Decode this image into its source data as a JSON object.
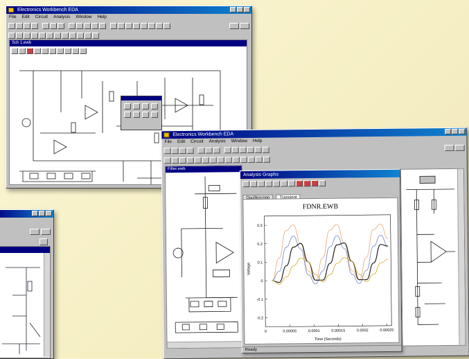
{
  "windows": {
    "top_left": {
      "title": "Electronics Workbench EDA",
      "menu": [
        "File",
        "Edit",
        "Circuit",
        "Analysis",
        "Window",
        "Help"
      ],
      "child_title": "Sch 1.ewb"
    },
    "right": {
      "title": "Electronics Workbench EDA",
      "menu": [
        "File",
        "Edit",
        "Circuit",
        "Analysis",
        "Window",
        "Help"
      ],
      "child_title": "Filter.ewb",
      "grapher": {
        "title": "Analysis Graphs",
        "tabs": [
          "Oscilloscope",
          "Transient"
        ],
        "plot_title": "FDNR.EWB",
        "xlabel": "Time (Seconds)",
        "ylabel": "Voltage",
        "status": "Ready"
      }
    },
    "bottom_left": {
      "title": ""
    }
  },
  "chart_data": {
    "type": "line",
    "title": "FDNR.EWB",
    "xlabel": "Time (Seconds)",
    "ylabel": "Voltage",
    "x_ticks": [
      "0",
      "0.00005",
      "0.0001",
      "0.00015",
      "0.0002",
      "0.00025"
    ],
    "y_ticks": [
      "0.3",
      "0.2",
      "0.1",
      "0",
      "-0.1",
      "-0.2"
    ],
    "ylim": [
      -0.25,
      0.35
    ],
    "xlim": [
      0,
      0.00026
    ],
    "series": [
      {
        "color": "#e8b080",
        "values": [
          0.0,
          0.12,
          0.27,
          0.3,
          0.2,
          0.05,
          0.0,
          0.12,
          0.27,
          0.3,
          0.2,
          0.05,
          0.0,
          0.12,
          0.27,
          0.3,
          0.22
        ]
      },
      {
        "color": "#8090c8",
        "values": [
          0.0,
          0.05,
          0.18,
          0.24,
          0.17,
          0.03,
          -0.02,
          0.05,
          0.18,
          0.24,
          0.17,
          0.03,
          -0.02,
          0.05,
          0.18,
          0.24,
          0.18
        ]
      },
      {
        "color": "#202020",
        "values": [
          0.0,
          -0.01,
          0.08,
          0.18,
          0.2,
          0.1,
          0.0,
          0.0,
          0.09,
          0.19,
          0.2,
          0.1,
          0.0,
          0.0,
          0.09,
          0.19,
          0.18
        ]
      },
      {
        "color": "#d8b040",
        "values": [
          0.0,
          -0.02,
          0.02,
          0.08,
          0.12,
          0.1,
          0.03,
          -0.01,
          0.03,
          0.09,
          0.12,
          0.1,
          0.03,
          -0.01,
          0.03,
          0.09,
          0.11
        ]
      }
    ],
    "grid": false,
    "legend": "none"
  },
  "colors": {
    "titlebar": "#000080",
    "window": "#c0c0c0",
    "background": "#f6efc4"
  }
}
